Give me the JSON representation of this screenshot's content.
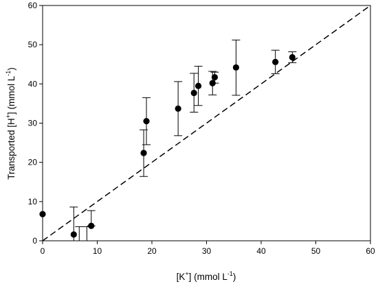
{
  "chart_data": {
    "type": "scatter",
    "xlabel": {
      "base": "[K",
      "sup": "+",
      "unit_open": "] (mmol L",
      "unit_sup": "-1",
      "close": ")"
    },
    "ylabel": {
      "base": "Transported [H",
      "sup": "+",
      "unit_open": "] (mmol L",
      "unit_sup": "-1",
      "close": ")"
    },
    "xlim": [
      0,
      60
    ],
    "ylim": [
      0,
      60
    ],
    "xticks": [
      0,
      10,
      20,
      30,
      40,
      50,
      60
    ],
    "yticks": [
      0,
      10,
      20,
      30,
      40,
      50,
      60
    ],
    "grid": false,
    "legend": "none",
    "reference_line": {
      "style": "dashed",
      "points": [
        [
          0,
          0
        ],
        [
          60,
          60
        ]
      ]
    },
    "points": [
      {
        "x": 0,
        "y": 6.8,
        "err_low": 0,
        "err_high": 0
      },
      {
        "x": 5.7,
        "y": 1.6,
        "err_low": 0,
        "err_high": 8.6
      },
      {
        "x": 6.7,
        "y": 0,
        "err_low": 0,
        "err_high": 3.6
      },
      {
        "x": 8.1,
        "y": 0,
        "err_low": 0,
        "err_high": 3.6
      },
      {
        "x": 8.9,
        "y": 3.8,
        "err_low": 3.8,
        "err_high": 7.7
      },
      {
        "x": 18.5,
        "y": 22.4,
        "err_low": 16.4,
        "err_high": 28.3
      },
      {
        "x": 19.0,
        "y": 30.5,
        "err_low": 24.5,
        "err_high": 36.5
      },
      {
        "x": 24.8,
        "y": 33.7,
        "err_low": 26.8,
        "err_high": 40.6
      },
      {
        "x": 27.7,
        "y": 37.7,
        "err_low": 32.8,
        "err_high": 42.7
      },
      {
        "x": 28.5,
        "y": 39.5,
        "err_low": 34.5,
        "err_high": 44.5
      },
      {
        "x": 31.1,
        "y": 40.2,
        "err_low": 37.2,
        "err_high": 43.2
      },
      {
        "x": 31.5,
        "y": 41.7,
        "err_low": 40.2,
        "err_high": 43.0
      },
      {
        "x": 35.4,
        "y": 44.2,
        "err_low": 37.1,
        "err_high": 51.2
      },
      {
        "x": 42.6,
        "y": 45.6,
        "err_low": 42.6,
        "err_high": 48.6
      },
      {
        "x": 45.7,
        "y": 46.8,
        "err_low": 45.4,
        "err_high": 48.2
      }
    ],
    "marker_color": "#000000",
    "line_color": "#000000"
  }
}
